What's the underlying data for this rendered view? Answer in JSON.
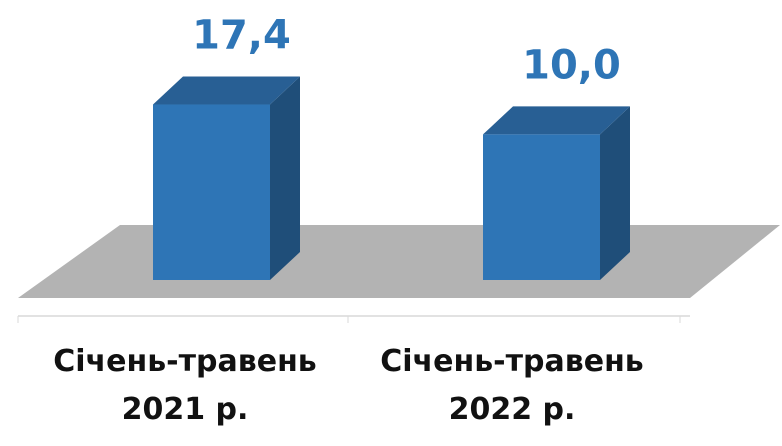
{
  "chart_data": {
    "type": "bar3d",
    "categories": [
      "Січень-травень 2021 р.",
      "Січень-травень 2022 р."
    ],
    "values": [
      17.4,
      10.0
    ],
    "value_labels": [
      "17,4",
      "10,0"
    ],
    "color": "#2e75b6",
    "ylim": [
      -26,
      20
    ]
  }
}
